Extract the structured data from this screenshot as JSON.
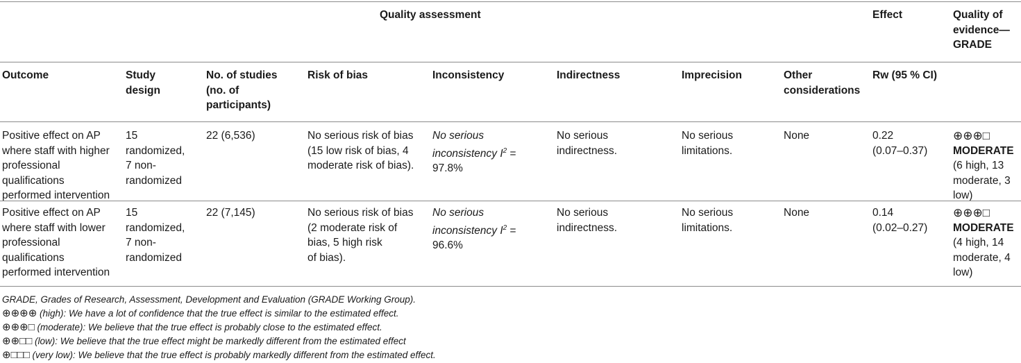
{
  "header": {
    "quality_assessment": "Quality assessment",
    "effect": "Effect",
    "quality_of_evidence": [
      "Quality of",
      "evidence—",
      "GRADE"
    ]
  },
  "columns": {
    "outcome": [
      "Outcome"
    ],
    "study_design": [
      "Study",
      "design"
    ],
    "no_of_studies": [
      "No. of studies",
      "(no. of",
      "participants)"
    ],
    "risk_of_bias": [
      "Risk of bias"
    ],
    "inconsistency": [
      "Inconsistency"
    ],
    "indirectness": [
      "Indirectness"
    ],
    "imprecision": [
      "Imprecision"
    ],
    "other_considerations": [
      "Other",
      "considerations"
    ],
    "rw": [
      "Rw (95 % CI)"
    ]
  },
  "rows": [
    {
      "outcome": [
        "Positive effect on AP",
        "where staff with higher",
        "professional",
        "qualifications",
        "performed intervention"
      ],
      "study_design": [
        "15",
        "randomized,",
        "7 non-",
        "randomized"
      ],
      "no_of_studies": "22 (6,536)",
      "risk_of_bias": [
        "No serious risk of bias",
        "(15 low risk of bias, 4",
        "moderate risk of bias)."
      ],
      "inconsistency_line1": "No serious",
      "inconsistency_line2_pre": "inconsistency ",
      "inconsistency_i": "I",
      "inconsistency_sup": "2",
      "inconsistency_eq": " =",
      "inconsistency_value": "97.8%",
      "indirectness": [
        "No serious",
        "indirectness."
      ],
      "imprecision": [
        "No serious",
        "limitations."
      ],
      "other": "None",
      "rw": [
        "0.22",
        "(0.07–0.37)"
      ],
      "grade_symbols": "⊕⊕⊕□",
      "grade_label": "MODERATE",
      "grade_detail": [
        "(6 high, 13",
        "moderate, 3",
        "low)"
      ]
    },
    {
      "outcome": [
        "Positive effect on AP",
        "where staff with lower",
        "professional",
        "qualifications",
        "performed intervention"
      ],
      "study_design": [
        "15",
        "randomized,",
        "7 non-",
        "randomized"
      ],
      "no_of_studies": "22 (7,145)",
      "risk_of_bias": [
        "No serious risk of bias",
        "(2 moderate risk of",
        "bias, 5 high risk",
        "of bias)."
      ],
      "inconsistency_line1": "No serious",
      "inconsistency_line2_pre": "inconsistency ",
      "inconsistency_i": "I",
      "inconsistency_sup": "2",
      "inconsistency_eq": " =",
      "inconsistency_value": "96.6%",
      "indirectness": [
        "No serious",
        "indirectness."
      ],
      "imprecision": [
        "No serious",
        "limitations."
      ],
      "other": "None",
      "rw": [
        "0.14",
        "(0.02–0.27)"
      ],
      "grade_symbols": "⊕⊕⊕□",
      "grade_label": "MODERATE",
      "grade_detail": [
        "(4 high, 14",
        "moderate, 4",
        "low)"
      ]
    }
  ],
  "footnotes": {
    "grade_def": "GRADE, Grades of Research, Assessment, Development and Evaluation (GRADE Working Group).",
    "high_symbols": "⊕⊕⊕⊕",
    "high_text": " (high): We have a lot of confidence that the true effect is similar to the estimated effect.",
    "moderate_symbols": "⊕⊕⊕□",
    "moderate_text": " (moderate): We believe that the true effect is probably close to the estimated effect.",
    "low_symbols": "⊕⊕□□",
    "low_text": " (low): We believe that the true effect might be markedly different from the estimated effect",
    "verylow_symbols": "⊕□□□",
    "verylow_text": " (very low): We believe that the true effect is probably markedly different from the estimated effect."
  }
}
